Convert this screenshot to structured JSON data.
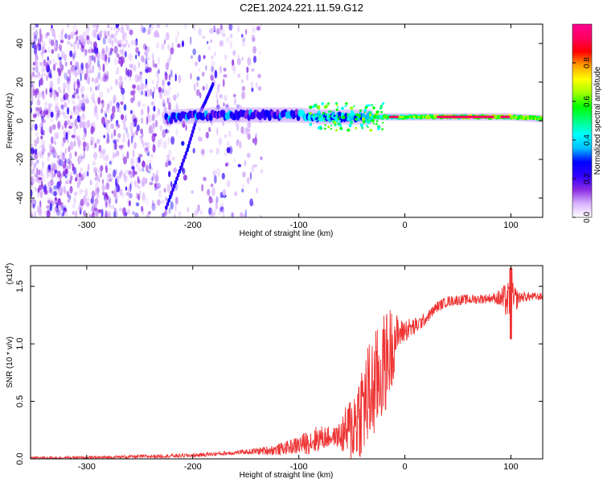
{
  "title": "C2E1.2024.221.11.59.G12",
  "chart_data": [
    {
      "type": "heatmap",
      "name": "spectrogram",
      "xlabel": "Height of straight line (km)",
      "ylabel": "Frequency (Hz)",
      "xlim": [
        -353,
        130
      ],
      "ylim": [
        -50,
        50
      ],
      "xticks": [
        -300,
        -200,
        -100,
        0,
        100
      ],
      "yticks": [
        -40,
        -20,
        0,
        20,
        40
      ],
      "colorbar": {
        "label": "Normalized spectral amplitude",
        "range": [
          0,
          1
        ],
        "ticks": [
          "0.0",
          "0.2",
          "0.4",
          "0.6",
          "0.8"
        ],
        "colors": [
          "#ffffff",
          "#d9b3ff",
          "#8a2be2",
          "#3000ff",
          "#0000ff",
          "#00c0ff",
          "#00ffff",
          "#00ff80",
          "#00ff00",
          "#a0ff00",
          "#ffff00",
          "#ffa000",
          "#ff0000",
          "#ff0060",
          "#ff0090"
        ]
      },
      "noise_region_x": [
        -353,
        -135
      ],
      "signal_track": [
        {
          "x": -220,
          "f": 2
        },
        {
          "x": -180,
          "f": 3
        },
        {
          "x": -140,
          "f": 3
        },
        {
          "x": -120,
          "f": 3
        },
        {
          "x": -100,
          "f": 3
        },
        {
          "x": -80,
          "f": 2
        },
        {
          "x": -60,
          "f": 2
        },
        {
          "x": -40,
          "f": 2
        },
        {
          "x": -20,
          "f": 2
        },
        {
          "x": 0,
          "f": 2
        },
        {
          "x": 20,
          "f": 2
        },
        {
          "x": 40,
          "f": 2
        },
        {
          "x": 60,
          "f": 2
        },
        {
          "x": 80,
          "f": 2
        },
        {
          "x": 100,
          "f": 2
        },
        {
          "x": 130,
          "f": 1
        }
      ],
      "diagonal_streak": [
        {
          "x": -225,
          "f": -45
        },
        {
          "x": -215,
          "f": -30
        },
        {
          "x": -205,
          "f": -15
        },
        {
          "x": -197,
          "f": 0
        },
        {
          "x": -188,
          "f": 10
        },
        {
          "x": -180,
          "f": 20
        }
      ]
    },
    {
      "type": "line",
      "name": "snr",
      "xlabel": "Height of straight line (km)",
      "ylabel": "SNR (10 * v/v)",
      "multiplier": "(x10",
      "multiplier_exp": "4",
      "multiplier_close": ")",
      "xlim": [
        -353,
        130
      ],
      "ylim": [
        0,
        1.68
      ],
      "xticks": [
        -300,
        -200,
        -100,
        0,
        100
      ],
      "yticks": [
        "0.0",
        "0.5",
        "1.0",
        "1.5"
      ],
      "color": "#ee3333",
      "envelope": [
        {
          "x": -353,
          "y": 0.01
        },
        {
          "x": -300,
          "y": 0.01
        },
        {
          "x": -250,
          "y": 0.02
        },
        {
          "x": -200,
          "y": 0.03
        },
        {
          "x": -150,
          "y": 0.06
        },
        {
          "x": -120,
          "y": 0.08
        },
        {
          "x": -100,
          "y": 0.12
        },
        {
          "x": -80,
          "y": 0.18
        },
        {
          "x": -60,
          "y": 0.2
        },
        {
          "x": -50,
          "y": 0.3
        },
        {
          "x": -40,
          "y": 0.5
        },
        {
          "x": -30,
          "y": 0.65
        },
        {
          "x": -20,
          "y": 0.85
        },
        {
          "x": -10,
          "y": 1.05
        },
        {
          "x": 0,
          "y": 1.12
        },
        {
          "x": 10,
          "y": 1.15
        },
        {
          "x": 20,
          "y": 1.22
        },
        {
          "x": 30,
          "y": 1.32
        },
        {
          "x": 40,
          "y": 1.37
        },
        {
          "x": 50,
          "y": 1.38
        },
        {
          "x": 70,
          "y": 1.39
        },
        {
          "x": 85,
          "y": 1.4
        },
        {
          "x": 95,
          "y": 1.38
        },
        {
          "x": 100,
          "y": 1.36
        },
        {
          "x": 110,
          "y": 1.41
        },
        {
          "x": 130,
          "y": 1.41
        }
      ],
      "noise": [
        {
          "x": -353,
          "a": 0.01
        },
        {
          "x": -150,
          "a": 0.02
        },
        {
          "x": -110,
          "a": 0.06
        },
        {
          "x": -85,
          "a": 0.12
        },
        {
          "x": -65,
          "a": 0.08
        },
        {
          "x": -50,
          "a": 0.3
        },
        {
          "x": -35,
          "a": 0.45
        },
        {
          "x": -15,
          "a": 0.4
        },
        {
          "x": -5,
          "a": 0.12
        },
        {
          "x": 20,
          "a": 0.05
        },
        {
          "x": 85,
          "a": 0.04
        },
        {
          "x": 100,
          "a": 0.2
        },
        {
          "x": 108,
          "a": 0.05
        },
        {
          "x": 130,
          "a": 0.03
        }
      ],
      "peaks": [
        {
          "x": 100,
          "y": 1.66
        },
        {
          "x": 100,
          "y": 1.04
        }
      ]
    }
  ]
}
